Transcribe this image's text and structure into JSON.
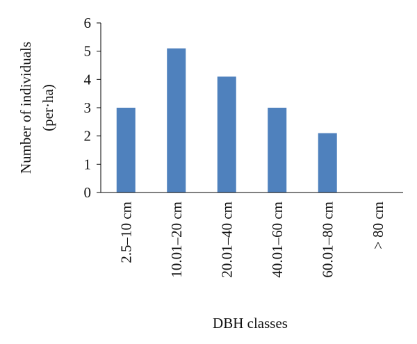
{
  "chart_data": {
    "type": "bar",
    "xlabel": "DBH classes",
    "ylabel": [
      "Number of individuals",
      "(per·ha)"
    ],
    "categories": [
      "2.5–10 cm",
      "10.01–20 cm",
      "20.01–40 cm",
      "40.01–60 cm",
      "60.01–80 cm",
      "> 80 cm"
    ],
    "values": [
      3,
      5.1,
      4.1,
      3,
      2.1,
      0
    ],
    "color": "#4f81bd",
    "ylim": [
      0,
      6
    ],
    "yticks": [
      0,
      1,
      2,
      3,
      4,
      5,
      6
    ],
    "grid": false
  }
}
